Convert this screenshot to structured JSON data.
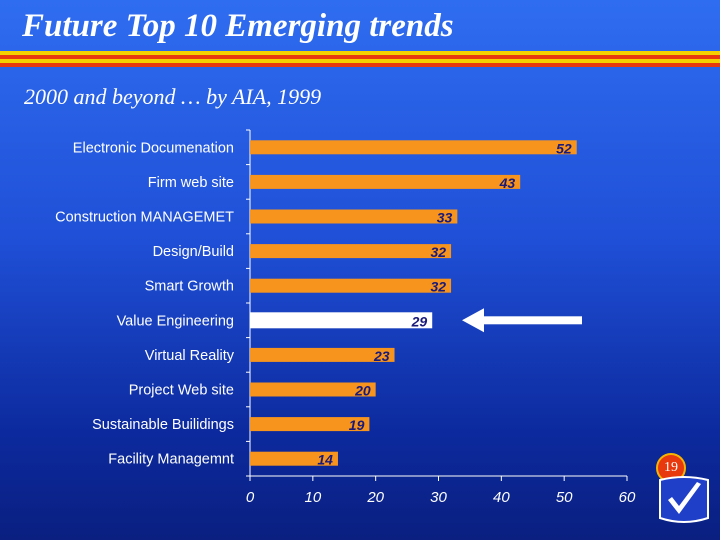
{
  "slide": {
    "title": "Future Top 10 Emerging trends",
    "subtitle": "2000 and beyond … by AIA, 1999",
    "page_number": "19",
    "stripe_colors": [
      "#f6d100",
      "#e8380d",
      "#f6d100",
      "#e8380d"
    ]
  },
  "chart_data": {
    "type": "bar",
    "orientation": "horizontal",
    "categories": [
      "Electronic Documenation",
      "Firm web site",
      "Construction MANAGEMET",
      "Design/Build",
      "Smart Growth",
      "Value Engineering",
      "Virtual Reality",
      "Project Web site",
      "Sustainable Builidings",
      "Facility Managemnt"
    ],
    "values": [
      52,
      43,
      33,
      32,
      32,
      29,
      23,
      20,
      19,
      14
    ],
    "xlim": [
      0,
      60
    ],
    "xticks": [
      0,
      10,
      20,
      30,
      40,
      50,
      60
    ],
    "grid": false,
    "legend": "none",
    "bar_color": "#f7941d",
    "highlight_index": 5,
    "highlight_color": "#ffffff",
    "label_color": "#1a1a7a",
    "annotation": "arrow pointing to Value Engineering"
  }
}
